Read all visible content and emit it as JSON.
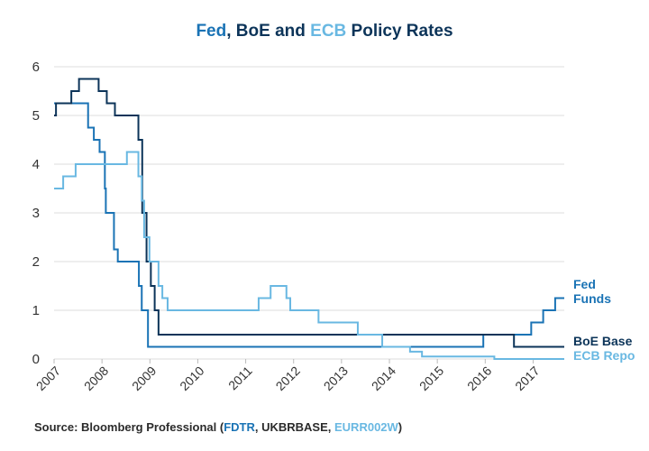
{
  "colors": {
    "fed": "#1a73b5",
    "boe": "#0c3459",
    "ecb": "#69b8e2",
    "grid": "#dddddd",
    "text": "#2b2b2b"
  },
  "title": {
    "part1": "Fed",
    "part2": ", BoE and ",
    "part3": "ECB",
    "part4": " Policy Rates"
  },
  "source": {
    "prefix": "Source: Bloomberg Professional (",
    "fed": "FDTR",
    "mid": ", UKBRBASE, ",
    "ecb": "EURR002W",
    "suffix": ")"
  },
  "chart_data": {
    "type": "line",
    "title": "Fed, BoE and ECB Policy Rates",
    "xlabel": "",
    "ylabel": "",
    "xlim": [
      2007,
      2017.65
    ],
    "ylim": [
      0,
      6
    ],
    "xticks": [
      "2007",
      "2008",
      "2009",
      "2010",
      "2011",
      "2012",
      "2013",
      "2014",
      "2015",
      "2016",
      "2017"
    ],
    "yticks": [
      "0",
      "1",
      "2",
      "3",
      "4",
      "5",
      "6"
    ],
    "grid": true,
    "legend": "right-end labels",
    "series": [
      {
        "name": "Fed Funds",
        "label_lines": [
          "Fed",
          "Funds"
        ],
        "step": true,
        "points": [
          [
            2007,
            5.25
          ],
          [
            2007.71,
            4.75
          ],
          [
            2007.83,
            4.5
          ],
          [
            2007.95,
            4.25
          ],
          [
            2008.06,
            3.5
          ],
          [
            2008.08,
            3.0
          ],
          [
            2008.25,
            2.25
          ],
          [
            2008.33,
            2.0
          ],
          [
            2008.77,
            1.5
          ],
          [
            2008.83,
            1.0
          ],
          [
            2008.96,
            0.25
          ],
          [
            2015.96,
            0.5
          ],
          [
            2016.96,
            0.75
          ],
          [
            2017.21,
            1.0
          ],
          [
            2017.46,
            1.25
          ],
          [
            2017.65,
            1.25
          ]
        ]
      },
      {
        "name": "BoE Base",
        "label_lines": [
          "BoE Base"
        ],
        "step": true,
        "points": [
          [
            2007,
            5.0
          ],
          [
            2007.04,
            5.25
          ],
          [
            2007.36,
            5.5
          ],
          [
            2007.52,
            5.75
          ],
          [
            2007.93,
            5.5
          ],
          [
            2008.1,
            5.25
          ],
          [
            2008.27,
            5.0
          ],
          [
            2008.76,
            4.5
          ],
          [
            2008.84,
            3.0
          ],
          [
            2008.93,
            2.0
          ],
          [
            2009.02,
            1.5
          ],
          [
            2009.1,
            1.0
          ],
          [
            2009.18,
            0.5
          ],
          [
            2016.6,
            0.25
          ],
          [
            2017.65,
            0.25
          ]
        ]
      },
      {
        "name": "ECB Repo",
        "label_lines": [
          "ECB Repo"
        ],
        "step": true,
        "points": [
          [
            2007,
            3.5
          ],
          [
            2007.19,
            3.75
          ],
          [
            2007.45,
            4.0
          ],
          [
            2008.52,
            4.25
          ],
          [
            2008.76,
            3.75
          ],
          [
            2008.83,
            3.25
          ],
          [
            2008.88,
            2.5
          ],
          [
            2008.99,
            2.0
          ],
          [
            2009.18,
            1.5
          ],
          [
            2009.26,
            1.25
          ],
          [
            2009.37,
            1.0
          ],
          [
            2011.27,
            1.25
          ],
          [
            2011.52,
            1.5
          ],
          [
            2011.85,
            1.25
          ],
          [
            2011.93,
            1.0
          ],
          [
            2012.52,
            0.75
          ],
          [
            2013.34,
            0.5
          ],
          [
            2013.85,
            0.25
          ],
          [
            2014.43,
            0.15
          ],
          [
            2014.68,
            0.05
          ],
          [
            2016.19,
            0.0
          ],
          [
            2017.65,
            0.0
          ]
        ]
      }
    ]
  }
}
